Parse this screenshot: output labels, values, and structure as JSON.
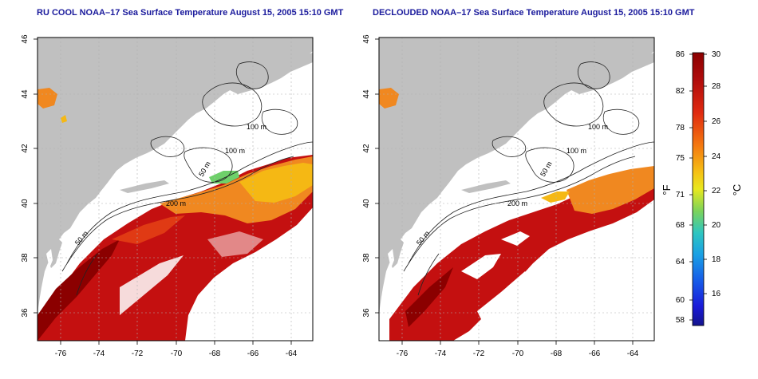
{
  "maps": [
    {
      "title": "RU COOL NOAA–17 Sea Surface Temperature August 15, 2005 15:10 GMT"
    },
    {
      "title": "DECLOUDED NOAA–17 Sea Surface Temperature August 15, 2005 15:10 GMT"
    }
  ],
  "axes": {
    "x_ticks": [
      "-76",
      "-74",
      "-72",
      "-70",
      "-68",
      "-66",
      "-64"
    ],
    "y_ticks": [
      "36",
      "38",
      "40",
      "42",
      "44",
      "46"
    ]
  },
  "contour_labels": [
    "100 m",
    "100 m",
    "50 m",
    "200 m",
    "50 m"
  ],
  "colorbar": {
    "f_label": "°F",
    "c_label": "°C",
    "f_ticks": [
      "86",
      "82",
      "78",
      "75",
      "71",
      "68",
      "64",
      "60",
      "58"
    ],
    "c_ticks": [
      "30",
      "28",
      "26",
      "24",
      "22",
      "20",
      "18",
      "16"
    ],
    "colors": [
      "#8b0000",
      "#c41010",
      "#e53a10",
      "#f57a10",
      "#f5b814",
      "#e8e81e",
      "#9ad64a",
      "#3cc8a8",
      "#19a8e0",
      "#1565e8",
      "#1a1ae0",
      "#14148c"
    ]
  },
  "colors": {
    "land": "#c0c0c0",
    "ocean": "#ffffff",
    "title": "#1a1a9c"
  }
}
